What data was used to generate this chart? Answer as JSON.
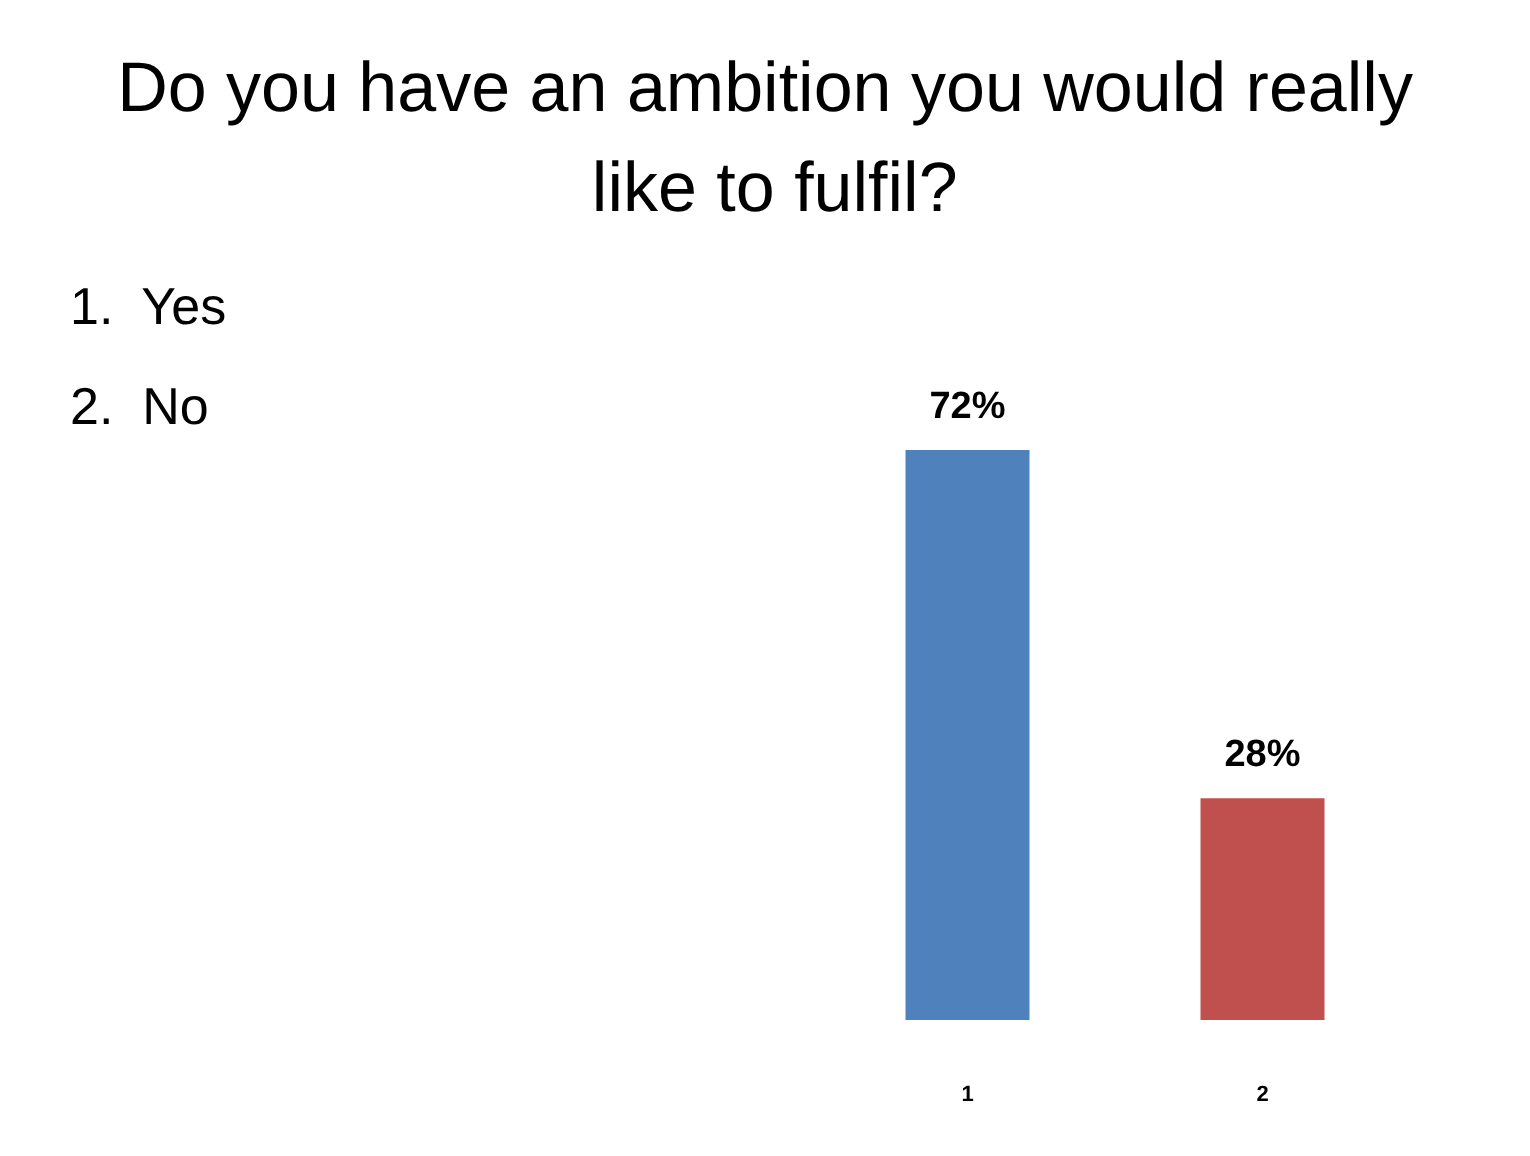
{
  "chart_data": {
    "type": "bar",
    "title": "Do you have an ambition you would really like to fulfil?",
    "categories": [
      "1",
      "2"
    ],
    "values": [
      72,
      28
    ],
    "colors": [
      "#4f81bd",
      "#c0504d"
    ],
    "value_labels": [
      "72%",
      "28%"
    ],
    "annotations": [
      "1.  Yes",
      "2.  No"
    ]
  }
}
